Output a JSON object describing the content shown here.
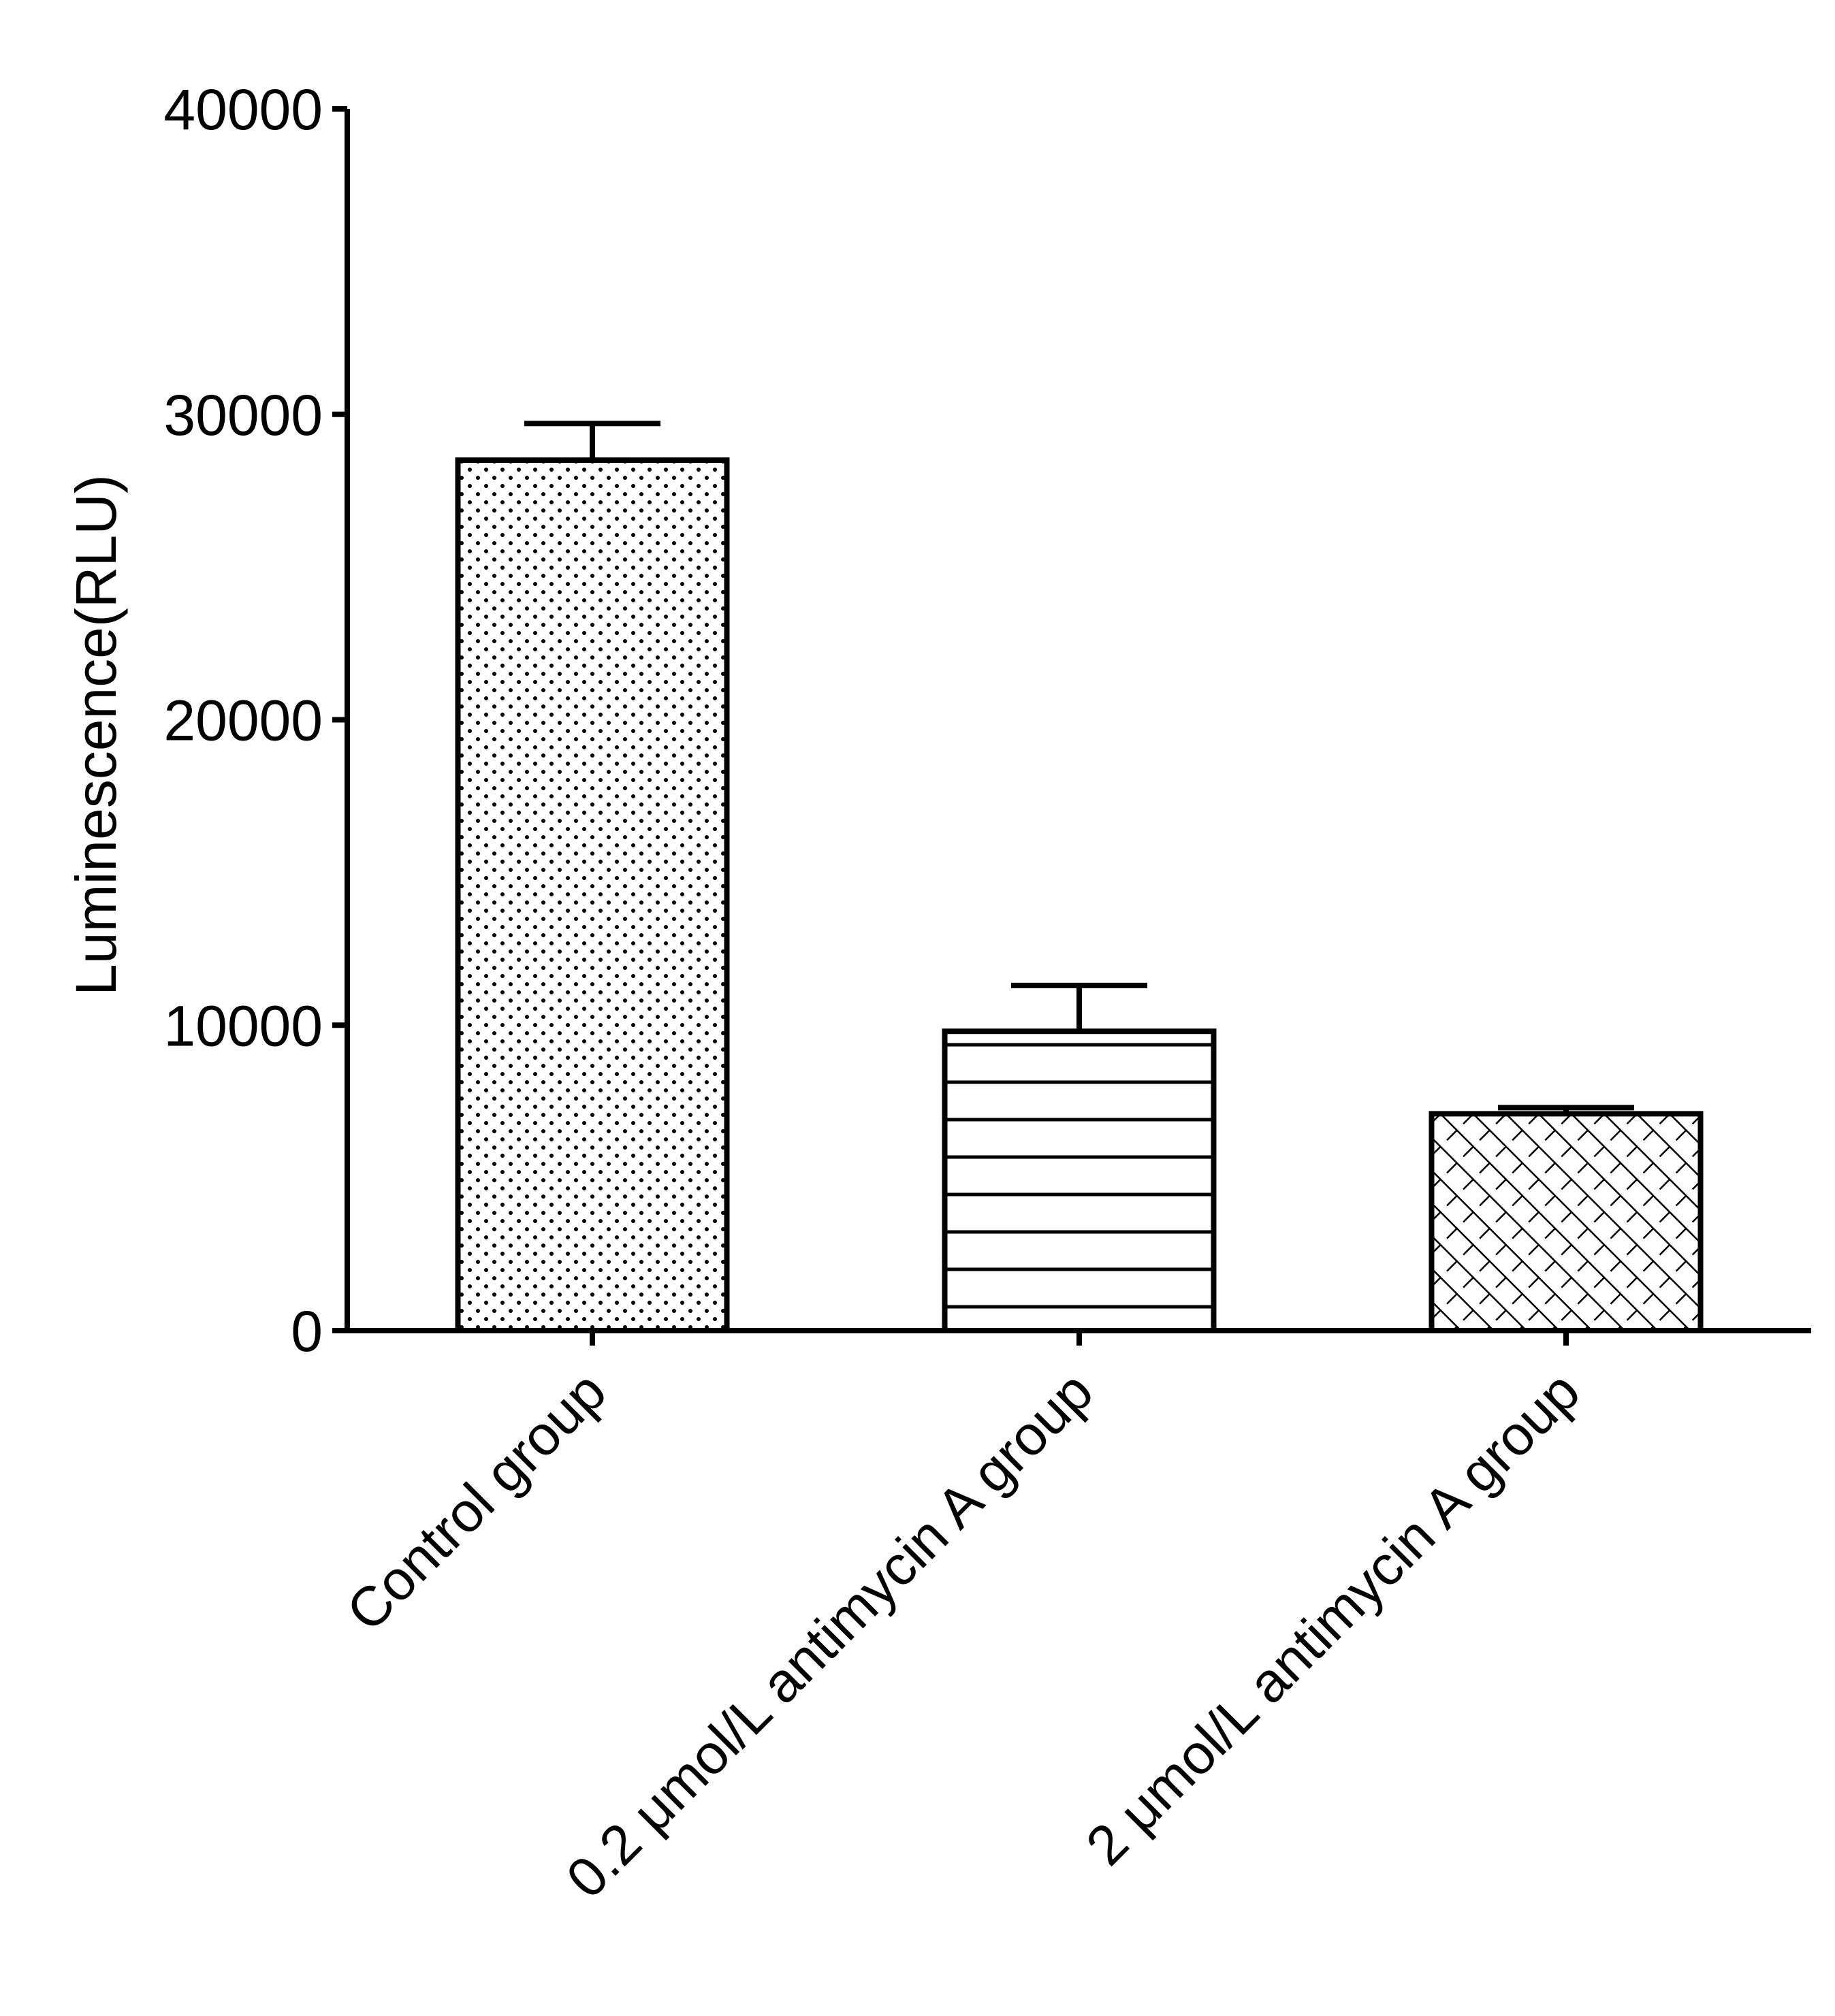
{
  "chart_data": {
    "type": "bar",
    "title": "",
    "xlabel": "",
    "ylabel": "Luminescence(RLU)",
    "ylim": [
      0,
      40000
    ],
    "yticks": [
      0,
      10000,
      20000,
      30000,
      40000
    ],
    "grid": false,
    "legend": "none",
    "categories": [
      "Control group",
      "0.2 μmol/L antimycin A group",
      "2 μmol/L antimycin A group"
    ],
    "values": [
      28500,
      9800,
      7100
    ],
    "error": [
      1200,
      1500,
      200
    ],
    "patterns": [
      "dots",
      "horizontal-lines",
      "crosshatch"
    ],
    "colors": {
      "stroke": "#000000",
      "fill": "#ffffff"
    }
  }
}
